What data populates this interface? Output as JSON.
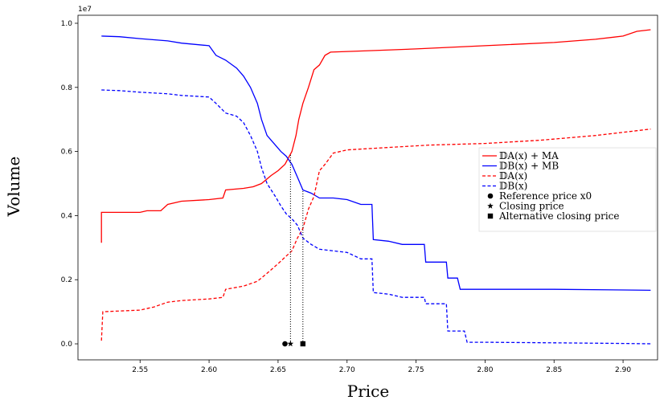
{
  "chart_data": {
    "type": "line",
    "xlabel": "Price",
    "ylabel": "Volume",
    "y_scale_label": "1e7",
    "xlim": [
      2.505,
      2.925
    ],
    "ylim": [
      -0.5,
      10.25
    ],
    "x_ticks": [
      2.55,
      2.6,
      2.65,
      2.7,
      2.75,
      2.8,
      2.85,
      2.9
    ],
    "x_tick_labels": [
      "2.55",
      "2.60",
      "2.65",
      "2.70",
      "2.75",
      "2.80",
      "2.85",
      "2.90"
    ],
    "y_ticks": [
      0,
      2,
      4,
      6,
      8,
      10
    ],
    "y_tick_labels": [
      "0.0",
      "0.2",
      "0.4",
      "0.6",
      "0.8",
      "1.0"
    ],
    "grid": false,
    "legend_position": "right",
    "series": [
      {
        "name": "𝔻A(x) + MA",
        "color": "#ff0000",
        "dash": "solid",
        "points": [
          [
            2.522,
            3.15
          ],
          [
            2.522,
            4.1
          ],
          [
            2.55,
            4.1
          ],
          [
            2.555,
            4.15
          ],
          [
            2.565,
            4.15
          ],
          [
            2.57,
            4.35
          ],
          [
            2.58,
            4.45
          ],
          [
            2.6,
            4.5
          ],
          [
            2.61,
            4.55
          ],
          [
            2.612,
            4.8
          ],
          [
            2.625,
            4.85
          ],
          [
            2.632,
            4.9
          ],
          [
            2.638,
            5.0
          ],
          [
            2.645,
            5.25
          ],
          [
            2.65,
            5.4
          ],
          [
            2.655,
            5.6
          ],
          [
            2.66,
            6.0
          ],
          [
            2.663,
            6.5
          ],
          [
            2.665,
            7.0
          ],
          [
            2.668,
            7.5
          ],
          [
            2.672,
            8.0
          ],
          [
            2.676,
            8.55
          ],
          [
            2.68,
            8.7
          ],
          [
            2.684,
            9.0
          ],
          [
            2.688,
            9.1
          ],
          [
            2.7,
            9.12
          ],
          [
            2.72,
            9.15
          ],
          [
            2.75,
            9.2
          ],
          [
            2.775,
            9.25
          ],
          [
            2.8,
            9.3
          ],
          [
            2.85,
            9.4
          ],
          [
            2.88,
            9.5
          ],
          [
            2.9,
            9.6
          ],
          [
            2.91,
            9.75
          ],
          [
            2.92,
            9.8
          ]
        ]
      },
      {
        "name": "𝔻B(x) + MB",
        "color": "#0000ff",
        "dash": "solid",
        "points": [
          [
            2.522,
            9.6
          ],
          [
            2.535,
            9.58
          ],
          [
            2.55,
            9.52
          ],
          [
            2.57,
            9.45
          ],
          [
            2.58,
            9.38
          ],
          [
            2.6,
            9.3
          ],
          [
            2.605,
            9.0
          ],
          [
            2.612,
            8.85
          ],
          [
            2.62,
            8.6
          ],
          [
            2.625,
            8.35
          ],
          [
            2.63,
            8.0
          ],
          [
            2.635,
            7.5
          ],
          [
            2.638,
            7.0
          ],
          [
            2.642,
            6.5
          ],
          [
            2.648,
            6.2
          ],
          [
            2.652,
            6.0
          ],
          [
            2.656,
            5.85
          ],
          [
            2.66,
            5.6
          ],
          [
            2.664,
            5.2
          ],
          [
            2.668,
            4.8
          ],
          [
            2.674,
            4.7
          ],
          [
            2.68,
            4.55
          ],
          [
            2.69,
            4.55
          ],
          [
            2.7,
            4.5
          ],
          [
            2.71,
            4.35
          ],
          [
            2.718,
            4.35
          ],
          [
            2.719,
            3.25
          ],
          [
            2.73,
            3.2
          ],
          [
            2.74,
            3.1
          ],
          [
            2.756,
            3.1
          ],
          [
            2.757,
            2.55
          ],
          [
            2.772,
            2.55
          ],
          [
            2.773,
            2.05
          ],
          [
            2.78,
            2.05
          ],
          [
            2.782,
            1.7
          ],
          [
            2.8,
            1.7
          ],
          [
            2.85,
            1.7
          ],
          [
            2.9,
            1.68
          ],
          [
            2.92,
            1.67
          ]
        ]
      },
      {
        "name": "𝔻A(x)",
        "color": "#ff0000",
        "dash": "dashed",
        "points": [
          [
            2.522,
            0.1
          ],
          [
            2.523,
            1.0
          ],
          [
            2.55,
            1.05
          ],
          [
            2.56,
            1.15
          ],
          [
            2.57,
            1.3
          ],
          [
            2.58,
            1.35
          ],
          [
            2.6,
            1.4
          ],
          [
            2.61,
            1.45
          ],
          [
            2.612,
            1.7
          ],
          [
            2.625,
            1.8
          ],
          [
            2.635,
            1.95
          ],
          [
            2.642,
            2.2
          ],
          [
            2.65,
            2.5
          ],
          [
            2.655,
            2.7
          ],
          [
            2.66,
            2.9
          ],
          [
            2.664,
            3.3
          ],
          [
            2.668,
            3.6
          ],
          [
            2.672,
            4.2
          ],
          [
            2.676,
            4.6
          ],
          [
            2.68,
            5.4
          ],
          [
            2.684,
            5.6
          ],
          [
            2.69,
            5.95
          ],
          [
            2.7,
            6.05
          ],
          [
            2.72,
            6.1
          ],
          [
            2.74,
            6.15
          ],
          [
            2.76,
            6.2
          ],
          [
            2.8,
            6.25
          ],
          [
            2.84,
            6.35
          ],
          [
            2.88,
            6.5
          ],
          [
            2.9,
            6.6
          ],
          [
            2.91,
            6.65
          ],
          [
            2.92,
            6.7
          ]
        ]
      },
      {
        "name": "𝔻B(x)",
        "color": "#0000ff",
        "dash": "dashed",
        "points": [
          [
            2.522,
            7.92
          ],
          [
            2.535,
            7.9
          ],
          [
            2.55,
            7.85
          ],
          [
            2.57,
            7.8
          ],
          [
            2.58,
            7.75
          ],
          [
            2.6,
            7.7
          ],
          [
            2.605,
            7.5
          ],
          [
            2.612,
            7.2
          ],
          [
            2.62,
            7.1
          ],
          [
            2.625,
            6.9
          ],
          [
            2.63,
            6.5
          ],
          [
            2.635,
            6.0
          ],
          [
            2.638,
            5.5
          ],
          [
            2.642,
            5.0
          ],
          [
            2.648,
            4.6
          ],
          [
            2.652,
            4.3
          ],
          [
            2.656,
            4.05
          ],
          [
            2.66,
            3.9
          ],
          [
            2.664,
            3.7
          ],
          [
            2.668,
            3.3
          ],
          [
            2.674,
            3.1
          ],
          [
            2.68,
            2.95
          ],
          [
            2.69,
            2.9
          ],
          [
            2.7,
            2.85
          ],
          [
            2.71,
            2.65
          ],
          [
            2.718,
            2.65
          ],
          [
            2.719,
            1.6
          ],
          [
            2.73,
            1.55
          ],
          [
            2.74,
            1.45
          ],
          [
            2.756,
            1.45
          ],
          [
            2.757,
            1.25
          ],
          [
            2.772,
            1.25
          ],
          [
            2.773,
            0.4
          ],
          [
            2.785,
            0.4
          ],
          [
            2.787,
            0.05
          ],
          [
            2.8,
            0.05
          ],
          [
            2.85,
            0.03
          ],
          [
            2.9,
            0.01
          ],
          [
            2.92,
            0.0
          ]
        ]
      }
    ],
    "markers": [
      {
        "name": "Reference price x0",
        "shape": "circle",
        "x": 2.655,
        "y": 0.0
      },
      {
        "name": "Closing price",
        "shape": "star",
        "x": 2.659,
        "y": 0.0
      },
      {
        "name": "Alternative closing price",
        "shape": "square",
        "x": 2.668,
        "y": 0.0
      }
    ],
    "vlines": [
      {
        "x": 2.659,
        "y_from": 0.0,
        "y_to": 5.9
      },
      {
        "x": 2.668,
        "y_from": 0.0,
        "y_to": 4.8
      }
    ]
  }
}
